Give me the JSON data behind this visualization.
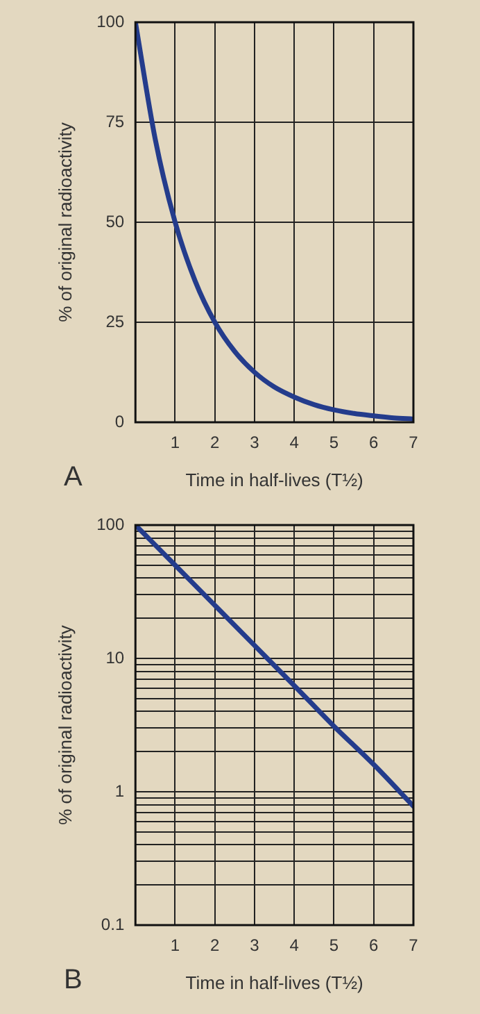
{
  "chart_data": [
    {
      "type": "line",
      "xlabel": "Time in half-lives (T½)",
      "ylabel": "% of original radioactivity",
      "annotations": [
        "A"
      ],
      "x": [
        0,
        0.5,
        1,
        1.5,
        2,
        2.5,
        3,
        3.5,
        4,
        4.5,
        5,
        5.5,
        6,
        6.5,
        7
      ],
      "series": [
        {
          "color": "#243c8c",
          "values": [
            100,
            70.7,
            50,
            35.4,
            25,
            17.7,
            12.5,
            8.8,
            6.3,
            4.4,
            3.1,
            2.2,
            1.6,
            1.1,
            0.8
          ]
        }
      ],
      "xlim": [
        0,
        7
      ],
      "xticks": [
        1,
        2,
        3,
        4,
        5,
        6,
        7
      ],
      "ylim": [
        0,
        100
      ],
      "yticks": [
        0,
        25,
        50,
        75,
        100
      ],
      "grid": true,
      "legend": false,
      "marker": "none",
      "line_style": "solid"
    },
    {
      "type": "line",
      "xlabel": "Time in half-lives (T½)",
      "ylabel": "% of original radioactivity",
      "annotations": [
        "B"
      ],
      "x": [
        0,
        1,
        2,
        3,
        4,
        5,
        6,
        7
      ],
      "series": [
        {
          "color": "#243c8c",
          "values": [
            100,
            50,
            25,
            12.5,
            6.25,
            3.1,
            1.6,
            0.78
          ]
        }
      ],
      "xlim": [
        0,
        7
      ],
      "xticks": [
        1,
        2,
        3,
        4,
        5,
        6,
        7
      ],
      "ylim": [
        0.1,
        100
      ],
      "log": "y",
      "yticks": [
        0.1,
        {
          "value": 0.2,
          "label": null
        },
        {
          "value": 0.3,
          "label": null
        },
        {
          "value": 0.4,
          "label": null
        },
        {
          "value": 0.5,
          "label": null
        },
        {
          "value": 0.6,
          "label": null
        },
        {
          "value": 0.7,
          "label": null
        },
        {
          "value": 0.8,
          "label": null
        },
        {
          "value": 0.9,
          "label": null
        },
        1,
        {
          "value": 2,
          "label": null
        },
        {
          "value": 3,
          "label": null
        },
        {
          "value": 4,
          "label": null
        },
        {
          "value": 5,
          "label": null
        },
        {
          "value": 6,
          "label": null
        },
        {
          "value": 7,
          "label": null
        },
        {
          "value": 8,
          "label": null
        },
        {
          "value": 9,
          "label": null
        },
        10,
        {
          "value": 20,
          "label": null
        },
        {
          "value": 30,
          "label": null
        },
        {
          "value": 40,
          "label": null
        },
        {
          "value": 50,
          "label": null
        },
        {
          "value": 60,
          "label": null
        },
        {
          "value": 70,
          "label": null
        },
        {
          "value": 80,
          "label": null
        },
        {
          "value": 90,
          "label": null
        },
        100
      ],
      "grid": true,
      "legend": false,
      "marker": "none",
      "line_style": "solid"
    }
  ]
}
